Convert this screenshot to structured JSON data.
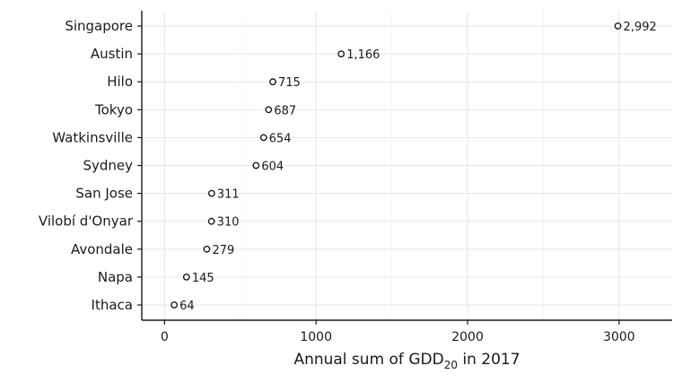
{
  "chart_data": {
    "type": "scatter",
    "categories": [
      "Singapore",
      "Austin",
      "Hilo",
      "Tokyo",
      "Watkinsville",
      "Sydney",
      "San Jose",
      "Vilobí d'Onyar",
      "Avondale",
      "Napa",
      "Ithaca"
    ],
    "values": [
      2992,
      1166,
      715,
      687,
      654,
      604,
      311,
      310,
      279,
      145,
      64
    ],
    "data_labels": [
      "2,992",
      "1,166",
      "715",
      "687",
      "654",
      "604",
      "311",
      "310",
      "279",
      "145",
      "64"
    ],
    "xlabel": "Annual sum of GDD",
    "xlabel_subscript": "20",
    "xlabel_suffix": " in 2017",
    "xticks": [
      0,
      1000,
      2000,
      3000
    ],
    "xtick_labels": [
      "0",
      "1000",
      "2000",
      "3000"
    ],
    "xlim": [
      -150,
      3350
    ],
    "grid": true
  }
}
